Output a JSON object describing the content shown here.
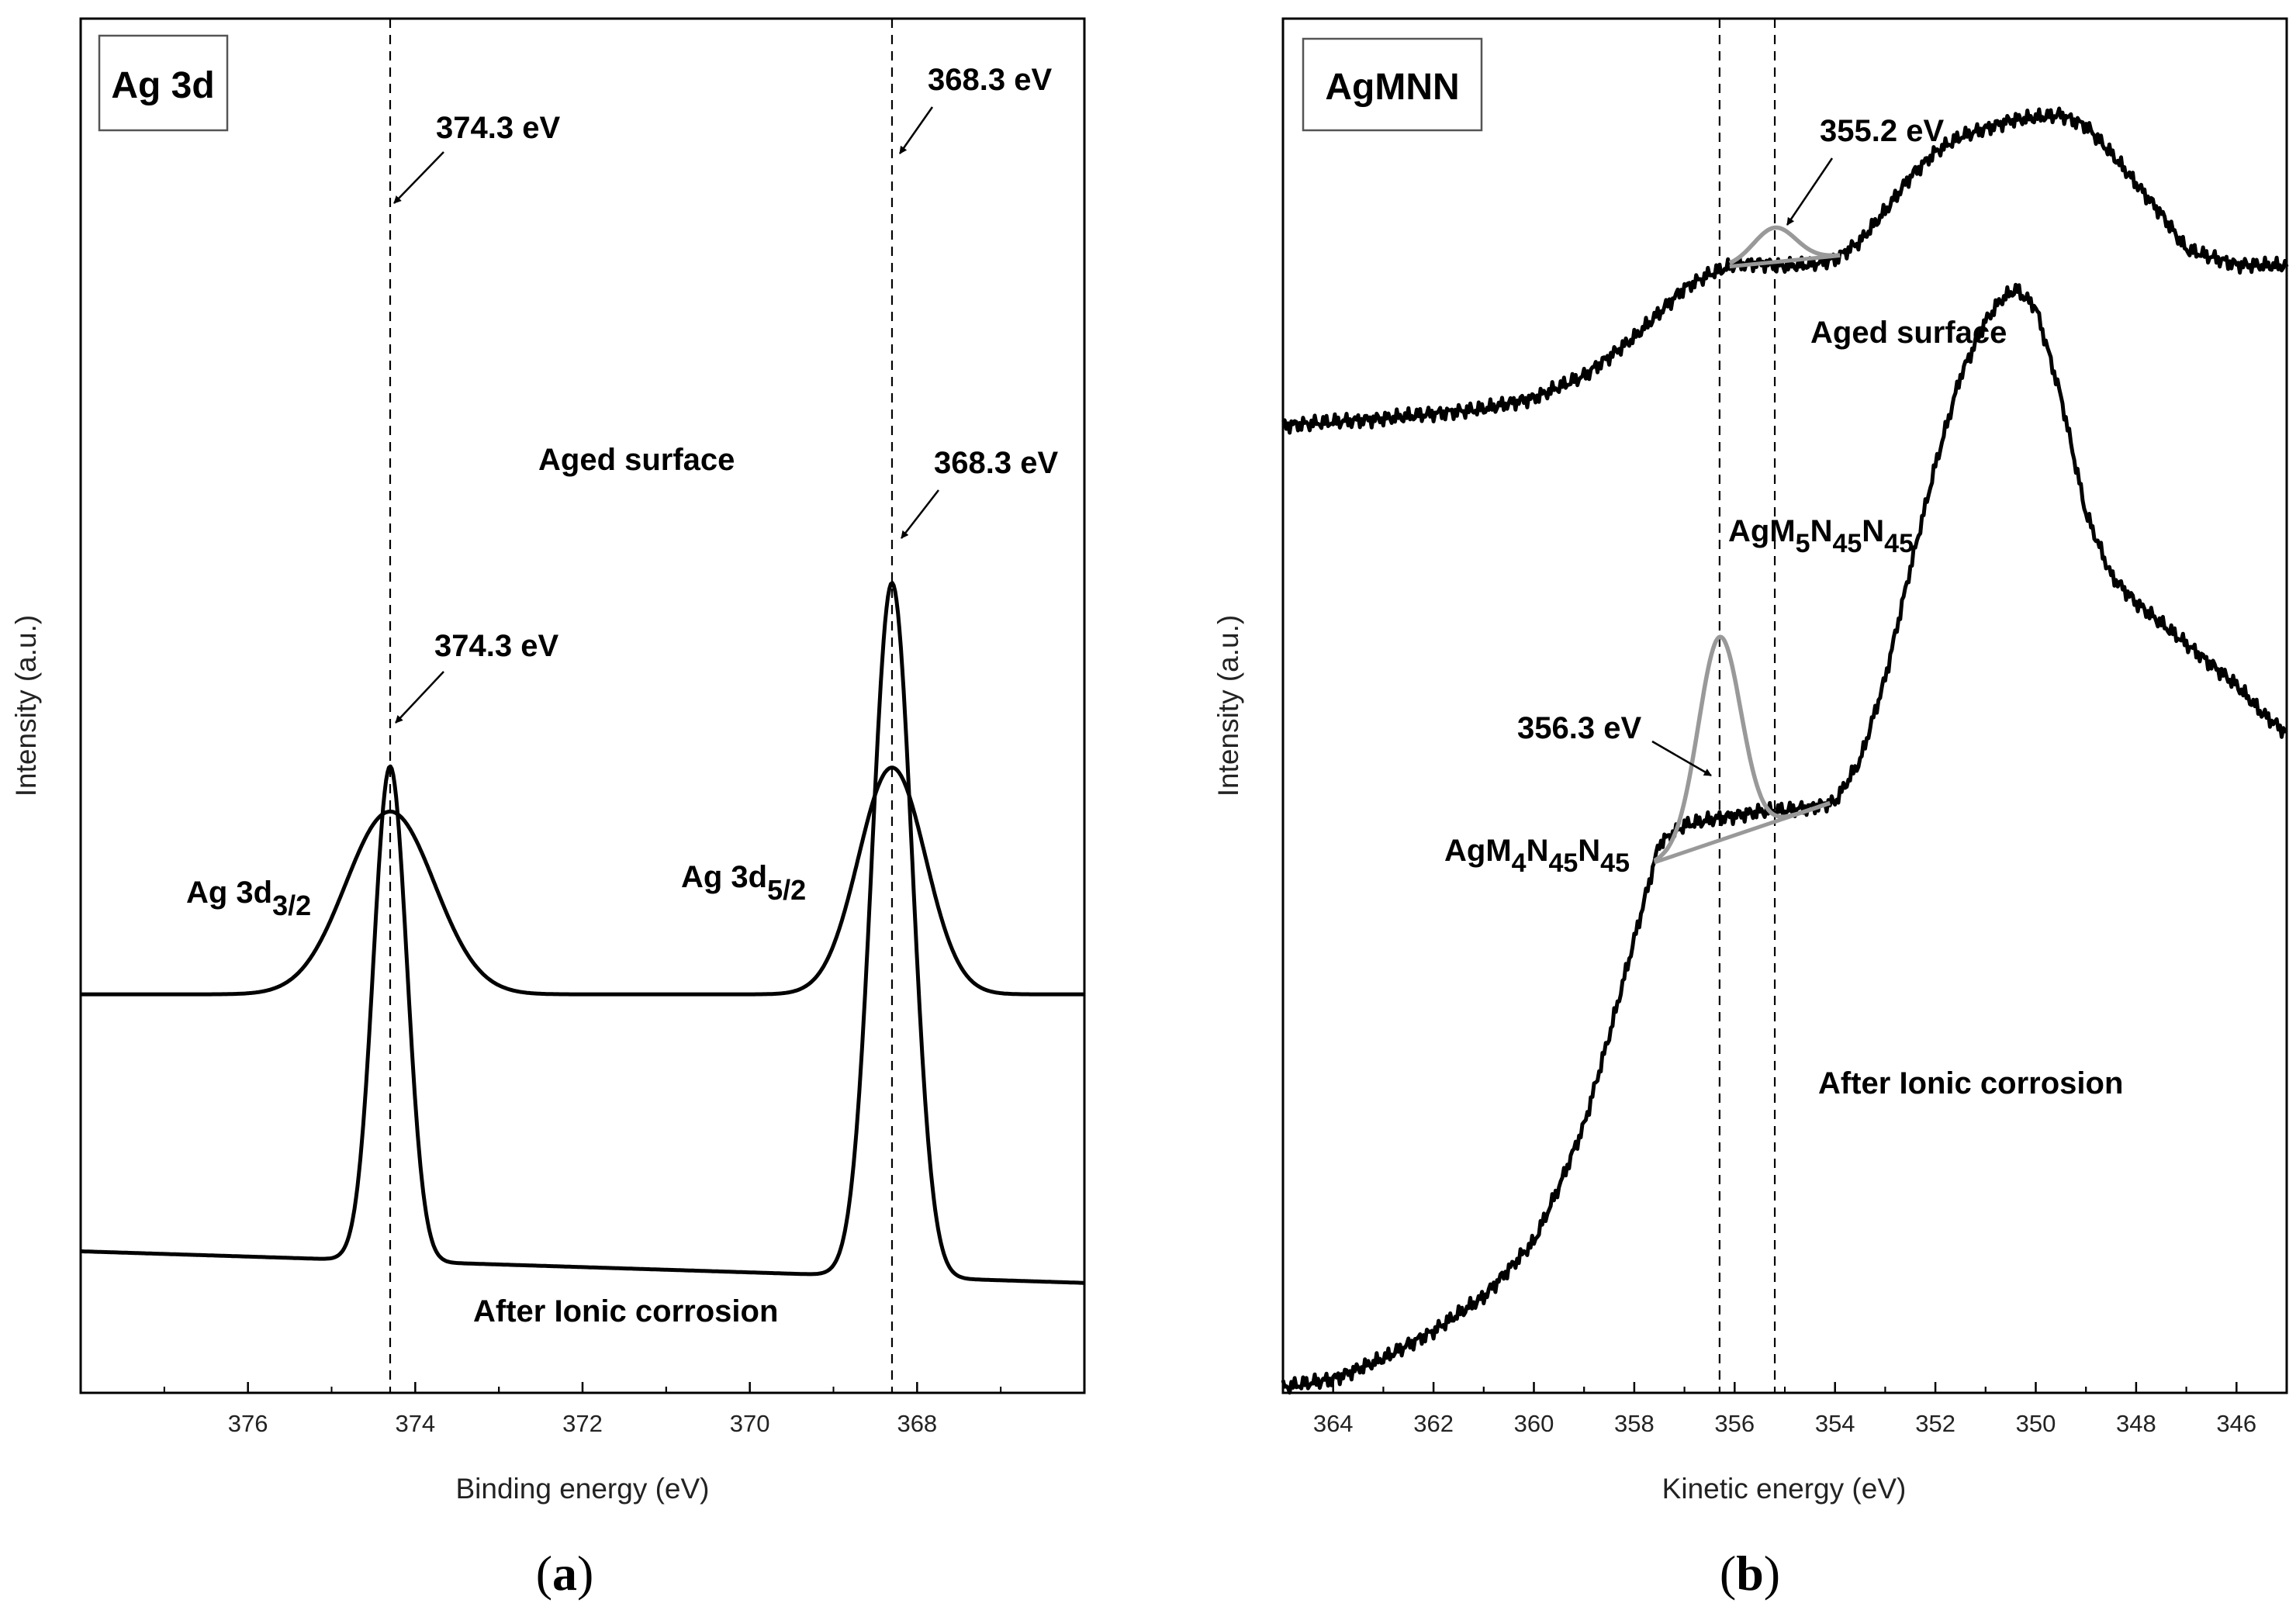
{
  "chart_data": [
    {
      "type": "line",
      "panel": "(a)",
      "panel_paren_open": "(",
      "panel_letter": "a",
      "panel_paren_close": ")",
      "title": "Ag 3d",
      "xlabel": "Binding energy (eV)",
      "ylabel": "Intensity (a.u.)",
      "xlim": [
        378,
        366
      ],
      "x_reversed": true,
      "xticks": [
        376,
        374,
        372,
        370,
        368
      ],
      "xtick_labels": [
        "376",
        "374",
        "372",
        "370",
        "368"
      ],
      "ylim": [
        0,
        100
      ],
      "yticks": false,
      "vlines_eV": [
        374.3,
        368.3
      ],
      "series": [
        {
          "name": "Aged surface",
          "baseline_start": 29.0,
          "baseline_end": 29.0,
          "peaks": [
            {
              "center": 374.3,
              "amplitude": 13.3,
              "sigma": 0.53
            },
            {
              "center": 368.3,
              "amplitude": 16.5,
              "sigma": 0.4
            }
          ]
        },
        {
          "name": "After Ionic corrosion",
          "baseline_start": 10.3,
          "baseline_end": 8.0,
          "peaks": [
            {
              "center": 374.3,
              "amplitude": 36.0,
              "sigma": 0.2
            },
            {
              "center": 368.3,
              "amplitude": 50.5,
              "sigma": 0.24
            }
          ]
        }
      ],
      "annotations": {
        "aged_peak_left": "374.3 eV",
        "aged_peak_right": "368.3 eV",
        "corr_peak_left": "374.3 eV",
        "corr_peak_right": "368.3 eV",
        "aged_label": "Aged surface",
        "corr_label": "After Ionic corrosion",
        "label_32_main": "Ag 3d",
        "label_32_sub": "3/2",
        "label_52_main": "Ag 3d",
        "label_52_sub": "5/2"
      }
    },
    {
      "type": "line",
      "panel": "(b)",
      "panel_paren_open": "(",
      "panel_letter": "b",
      "panel_paren_close": ")",
      "title": "AgMNN",
      "xlabel": "Kinetic energy (eV)",
      "ylabel": "Intensity (a.u.)",
      "xlim": [
        365,
        345
      ],
      "x_reversed": true,
      "xticks": [
        364,
        362,
        360,
        358,
        356,
        354,
        352,
        350,
        348,
        346
      ],
      "xtick_labels": [
        "364",
        "362",
        "360",
        "358",
        "356",
        "354",
        "352",
        "350",
        "348",
        "346"
      ],
      "ylim": [
        0,
        100
      ],
      "yticks": false,
      "vlines_eV": [
        356.3,
        355.2
      ],
      "series": [
        {
          "name": "Aged surface",
          "x": [
            365,
            363,
            361,
            360,
            359,
            358,
            357,
            356.5,
            356,
            355.5,
            355,
            354.5,
            354,
            353.5,
            353,
            352.5,
            352,
            351.5,
            351,
            350.5,
            350,
            349.5,
            349,
            348.5,
            348,
            347.5,
            347,
            346,
            345
          ],
          "y": [
            70.4,
            70.9,
            71.6,
            72.4,
            74.0,
            76.8,
            80.4,
            81.4,
            82.1,
            82.2,
            82.0,
            82.1,
            82.5,
            83.8,
            86.0,
            88.5,
            90.3,
            91.4,
            92.0,
            92.6,
            92.8,
            93.0,
            92.2,
            90.2,
            88.0,
            85.8,
            83.2,
            82.1,
            82.0
          ]
        },
        {
          "name": "After Ionic corrosion",
          "x": [
            365,
            364,
            363,
            362,
            361,
            360,
            359.5,
            359,
            358.5,
            358,
            357.5,
            357,
            356.5,
            356,
            355.5,
            355,
            354.5,
            354,
            353.5,
            353,
            352.5,
            352,
            351.5,
            351,
            350.7,
            350.4,
            350,
            349.5,
            349,
            348.5,
            348,
            347.5,
            347,
            346.5,
            346,
            345.5,
            345
          ],
          "y": [
            0.4,
            1.0,
            2.5,
            4.5,
            7.0,
            11.0,
            15.0,
            19.5,
            26.0,
            33.0,
            40.0,
            41.3,
            41.7,
            42.0,
            42.3,
            42.4,
            42.6,
            43.0,
            46.0,
            52.0,
            60.0,
            67.5,
            74.0,
            78.0,
            79.5,
            80.3,
            79.0,
            72.5,
            64.0,
            59.5,
            57.5,
            56.0,
            54.5,
            53.0,
            51.5,
            49.5,
            48.0
          ]
        }
      ],
      "fits": [
        {
          "name": "AgM5N45N45 component",
          "center": 355.2,
          "amplitude": 2.5,
          "sigma": 0.42,
          "base_from": 356.1,
          "base_to": 353.9,
          "color": "#999999"
        },
        {
          "name": "AgM4N45N45 component",
          "center": 356.3,
          "amplitude": 14.8,
          "sigma": 0.42,
          "base_from": 357.6,
          "base_to": 354.1,
          "color": "#999999"
        }
      ],
      "annotations": {
        "peak_aged": "355.2 eV",
        "peak_corr": "356.3 eV",
        "aged_label": "Aged surface",
        "corr_label": "After Ionic corrosion",
        "m5_agm": "AgM",
        "m5_sub1": "5",
        "m5_n1": "N",
        "m5_sub2": "45",
        "m5_n2": "N",
        "m5_sub3": "45",
        "m4_agm": "AgM",
        "m4_sub1": "4",
        "m4_n1": "N",
        "m4_sub2": "45",
        "m4_n2": "N",
        "m4_sub3": "45"
      }
    }
  ]
}
